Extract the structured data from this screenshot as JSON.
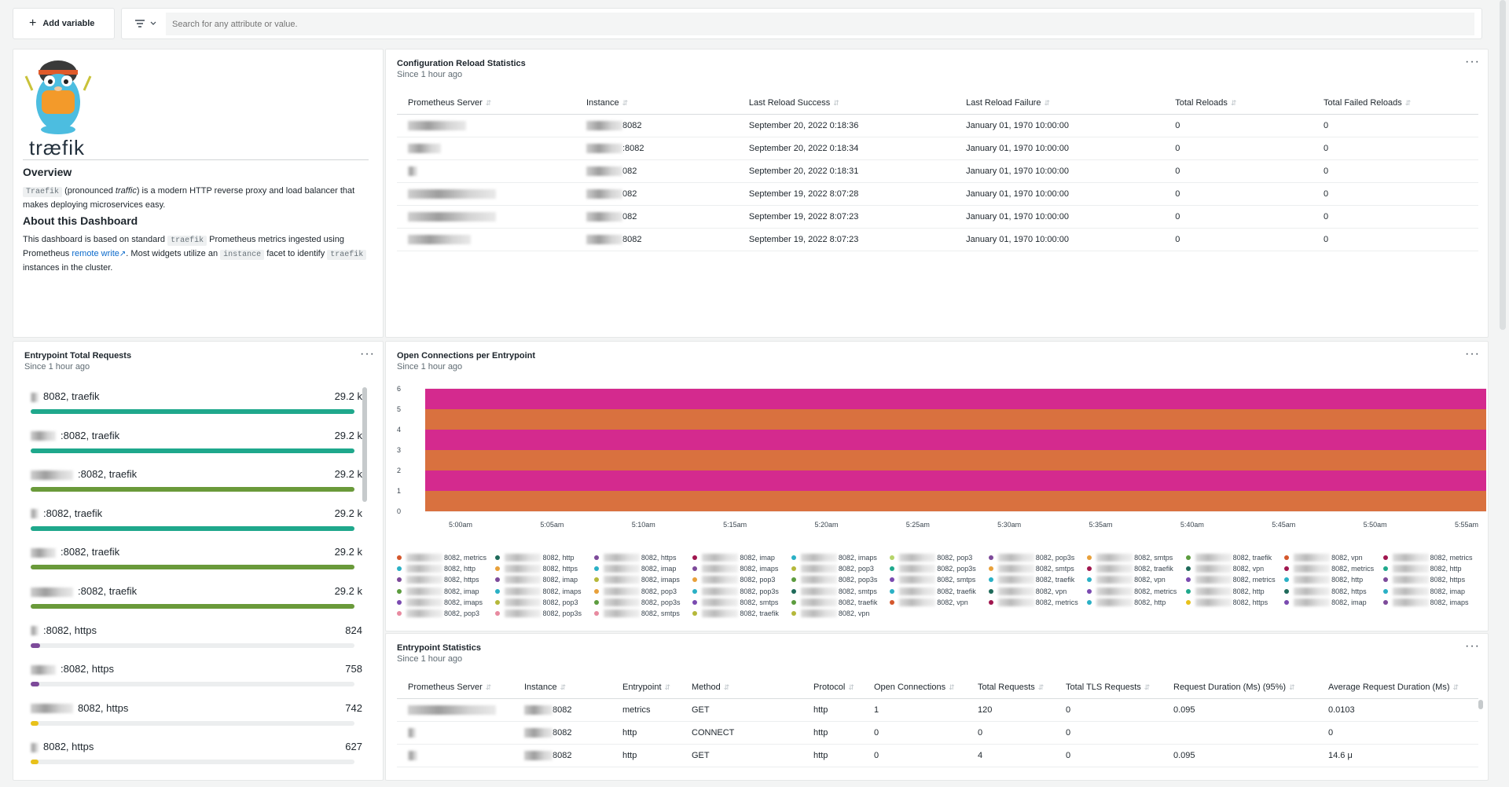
{
  "toolbar": {
    "add_variable_label": "Add variable",
    "search_placeholder": "Search for any attribute or value."
  },
  "about": {
    "logo_text": "træfik",
    "overview_heading": "Overview",
    "overview_code": "Traefik",
    "overview_pre": "(pronounced",
    "overview_em": "traffic",
    "overview_post": ") is a modern HTTP reverse proxy and load balancer that makes deploying microservices easy.",
    "about_heading": "About this Dashboard",
    "about_p1": "This dashboard is based on standard",
    "about_code1": "traefik",
    "about_p2": "Prometheus metrics ingested using Prometheus",
    "about_link": "remote write",
    "about_p3": ". Most widgets utilize an",
    "about_code2": "instance",
    "about_p4": "facet to identify",
    "about_code3": "traefik",
    "about_p5": "instances in the cluster."
  },
  "reload": {
    "title": "Configuration Reload Statistics",
    "subtitle": "Since 1 hour ago",
    "columns": [
      "Prometheus Server",
      "Instance",
      "Last Reload Success",
      "Last Reload Failure",
      "Total Reloads",
      "Total Failed Reloads"
    ],
    "rows": [
      {
        "instance": "8082",
        "success": "September 20, 2022 0:18:36",
        "failure": "January 01, 1970 10:00:00",
        "total": "0",
        "failed": "0"
      },
      {
        "instance": ":8082",
        "success": "September 20, 2022 0:18:34",
        "failure": "January 01, 1970 10:00:00",
        "total": "0",
        "failed": "0"
      },
      {
        "instance": "082",
        "success": "September 20, 2022 0:18:31",
        "failure": "January 01, 1970 10:00:00",
        "total": "0",
        "failed": "0"
      },
      {
        "instance": "082",
        "success": "September 19, 2022 8:07:28",
        "failure": "January 01, 1970 10:00:00",
        "total": "0",
        "failed": "0"
      },
      {
        "instance": "082",
        "success": "September 19, 2022 8:07:23",
        "failure": "January 01, 1970 10:00:00",
        "total": "0",
        "failed": "0"
      },
      {
        "instance": "8082",
        "success": "September 19, 2022 8:07:23",
        "failure": "January 01, 1970 10:00:00",
        "total": "0",
        "failed": "0"
      }
    ]
  },
  "entry_total": {
    "title": "Entrypoint Total Requests",
    "subtitle": "Since 1 hour ago",
    "max": 29200,
    "items": [
      {
        "label": "8082, traefik",
        "value_text": "29.2 k",
        "value": 29200,
        "color": "#1fa88c"
      },
      {
        "label": ":8082, traefik",
        "value_text": "29.2 k",
        "value": 29200,
        "color": "#1fa88c"
      },
      {
        "label": ":8082, traefik",
        "value_text": "29.2 k",
        "value": 29200,
        "color": "#6a9a3a"
      },
      {
        "label": ":8082, traefik",
        "value_text": "29.2 k",
        "value": 29200,
        "color": "#1fa88c"
      },
      {
        "label": ":8082, traefik",
        "value_text": "29.2 k",
        "value": 29200,
        "color": "#6a9a3a"
      },
      {
        "label": ":8082, traefik",
        "value_text": "29.2 k",
        "value": 29200,
        "color": "#6a9a3a"
      },
      {
        "label": ":8082, https",
        "value_text": "824",
        "value": 824,
        "color": "#7d4a9a"
      },
      {
        "label": ":8082, https",
        "value_text": "758",
        "value": 758,
        "color": "#7d4a9a"
      },
      {
        "label": "8082, https",
        "value_text": "742",
        "value": 742,
        "color": "#e8c11a"
      },
      {
        "label": "8082, https",
        "value_text": "627",
        "value": 627,
        "color": "#e8c11a"
      }
    ]
  },
  "open_conn": {
    "title": "Open Connections per Entrypoint",
    "subtitle": "Since 1 hour ago",
    "legend_cols": [
      [
        {
          "c": "#d4572c",
          "t": "8082, metrics"
        },
        {
          "c": "#2ab0c5",
          "t": "8082, http"
        },
        {
          "c": "#7d4a9a",
          "t": "8082, https"
        },
        {
          "c": "#5c9c3e",
          "t": "8082, imap"
        },
        {
          "c": "#7a4ab0",
          "t": "8082, imaps"
        },
        {
          "c": "#e88aa0",
          "t": "8082, pop3"
        }
      ],
      [
        {
          "c": "#1f6a5a",
          "t": "8082, http"
        },
        {
          "c": "#e8a03a",
          "t": "8082, https"
        },
        {
          "c": "#7d4a9a",
          "t": "8082, imap"
        },
        {
          "c": "#2ab0c5",
          "t": "8082, imaps"
        },
        {
          "c": "#b5b83a",
          "t": "8082, pop3"
        },
        {
          "c": "#e88aa0",
          "t": "8082, pop3s"
        }
      ],
      [
        {
          "c": "#7d4a9a",
          "t": "8082, https"
        },
        {
          "c": "#2ab0c5",
          "t": "8082, imap"
        },
        {
          "c": "#b5b83a",
          "t": "8082, imaps"
        },
        {
          "c": "#e8a03a",
          "t": "8082, pop3"
        },
        {
          "c": "#5c9c3e",
          "t": "8082, pop3s"
        },
        {
          "c": "#e88aa0",
          "t": "8082, smtps"
        }
      ],
      [
        {
          "c": "#a0164e",
          "t": "8082, imap"
        },
        {
          "c": "#7d4a9a",
          "t": "8082, imaps"
        },
        {
          "c": "#e8a03a",
          "t": "8082, pop3"
        },
        {
          "c": "#2ab0c5",
          "t": "8082, pop3s"
        },
        {
          "c": "#7a4ab0",
          "t": "8082, smtps"
        },
        {
          "c": "#b5b83a",
          "t": "8082, traefik"
        }
      ],
      [
        {
          "c": "#2ab0c5",
          "t": "8082, imaps"
        },
        {
          "c": "#b5b83a",
          "t": "8082, pop3"
        },
        {
          "c": "#5c9c3e",
          "t": "8082, pop3s"
        },
        {
          "c": "#1f6a5a",
          "t": "8082, smtps"
        },
        {
          "c": "#5c9c3e",
          "t": "8082, traefik"
        },
        {
          "c": "#b5b83a",
          "t": "8082, vpn"
        }
      ],
      [
        {
          "c": "#b5d46a",
          "t": "8082, pop3"
        },
        {
          "c": "#1fa88c",
          "t": "8082, pop3s"
        },
        {
          "c": "#7a4ab0",
          "t": "8082, smtps"
        },
        {
          "c": "#2ab0c5",
          "t": "8082, traefik"
        },
        {
          "c": "#d4572c",
          "t": "8082, vpn"
        }
      ],
      [
        {
          "c": "#7d4a9a",
          "t": "8082, pop3s"
        },
        {
          "c": "#e8a03a",
          "t": "8082, smtps"
        },
        {
          "c": "#2ab0c5",
          "t": "8082, traefik"
        },
        {
          "c": "#1f6a5a",
          "t": "8082, vpn"
        },
        {
          "c": "#a0164e",
          "t": "8082, metrics"
        }
      ],
      [
        {
          "c": "#e8a03a",
          "t": "8082, smtps"
        },
        {
          "c": "#a0164e",
          "t": "8082, traefik"
        },
        {
          "c": "#2ab0c5",
          "t": "8082, vpn"
        },
        {
          "c": "#7a4ab0",
          "t": "8082, metrics"
        },
        {
          "c": "#2ab0c5",
          "t": "8082, http"
        }
      ],
      [
        {
          "c": "#5c9c3e",
          "t": "8082, traefik"
        },
        {
          "c": "#1f6a5a",
          "t": "8082, vpn"
        },
        {
          "c": "#7a4ab0",
          "t": "8082, metrics"
        },
        {
          "c": "#1fa88c",
          "t": "8082, http"
        },
        {
          "c": "#e8c11a",
          "t": "8082, https"
        }
      ],
      [
        {
          "c": "#d4572c",
          "t": "8082, vpn"
        },
        {
          "c": "#a0164e",
          "t": "8082, metrics"
        },
        {
          "c": "#2ab0c5",
          "t": "8082, http"
        },
        {
          "c": "#1f6a5a",
          "t": "8082, https"
        },
        {
          "c": "#7a4ab0",
          "t": "8082, imap"
        }
      ],
      [
        {
          "c": "#a0164e",
          "t": "8082, metrics"
        },
        {
          "c": "#1fa88c",
          "t": "8082, http"
        },
        {
          "c": "#7d4a9a",
          "t": "8082, https"
        },
        {
          "c": "#2ab0c5",
          "t": "8082, imap"
        },
        {
          "c": "#7d4a9a",
          "t": "8082, imaps"
        }
      ]
    ]
  },
  "chart_data": {
    "type": "area",
    "title": "Open Connections per Entrypoint",
    "subtitle": "Since 1 hour ago",
    "stacked": true,
    "x": [
      "5:00am",
      "5:05am",
      "5:10am",
      "5:15am",
      "5:20am",
      "5:25am",
      "5:30am",
      "5:35am",
      "5:40am",
      "5:45am",
      "5:50am",
      "5:55am"
    ],
    "ylim": [
      0,
      6
    ],
    "yticks": [
      0,
      1,
      2,
      3,
      4,
      5,
      6
    ],
    "series": [
      {
        "color": "#d9713f",
        "values": [
          1,
          1,
          1,
          1,
          1,
          1,
          1,
          1,
          1,
          1,
          1,
          1
        ]
      },
      {
        "color": "#d42a8e",
        "values": [
          1,
          1,
          1,
          1,
          1,
          1,
          1,
          1,
          1,
          1,
          1,
          1
        ]
      },
      {
        "color": "#d9713f",
        "values": [
          1,
          1,
          1,
          1,
          1,
          1,
          1,
          1,
          1,
          1,
          1,
          1
        ]
      },
      {
        "color": "#d42a8e",
        "values": [
          1,
          1,
          1,
          1,
          1,
          1,
          1,
          1,
          1,
          1,
          1,
          1
        ]
      },
      {
        "color": "#d9713f",
        "values": [
          1,
          1,
          1,
          1,
          1,
          1,
          1,
          1,
          1,
          1,
          1,
          1
        ]
      },
      {
        "color": "#d42a8e",
        "values": [
          1,
          1,
          1,
          1,
          1,
          1,
          1,
          1,
          1,
          1,
          1,
          1
        ]
      }
    ],
    "grid": true,
    "legend": "bottom"
  },
  "entry_stats": {
    "title": "Entrypoint Statistics",
    "subtitle": "Since 1 hour ago",
    "columns": [
      "Prometheus Server",
      "Instance",
      "Entrypoint",
      "Method",
      "Protocol",
      "Open Connections",
      "Total Requests",
      "Total TLS Requests",
      "Request Duration (Ms) (95%)",
      "Average Request Duration (Ms)"
    ],
    "rows": [
      {
        "instance": "8082",
        "entrypoint": "metrics",
        "method": "GET",
        "protocol": "http",
        "open": "1",
        "total": "120",
        "tls": "0",
        "p95": "0.095",
        "avg": "0.0103"
      },
      {
        "instance": "8082",
        "entrypoint": "http",
        "method": "CONNECT",
        "protocol": "http",
        "open": "0",
        "total": "0",
        "tls": "0",
        "p95": "",
        "avg": "0"
      },
      {
        "instance": "8082",
        "entrypoint": "http",
        "method": "GET",
        "protocol": "http",
        "open": "0",
        "total": "4",
        "tls": "0",
        "p95": "0.095",
        "avg": "14.6 μ"
      }
    ]
  }
}
